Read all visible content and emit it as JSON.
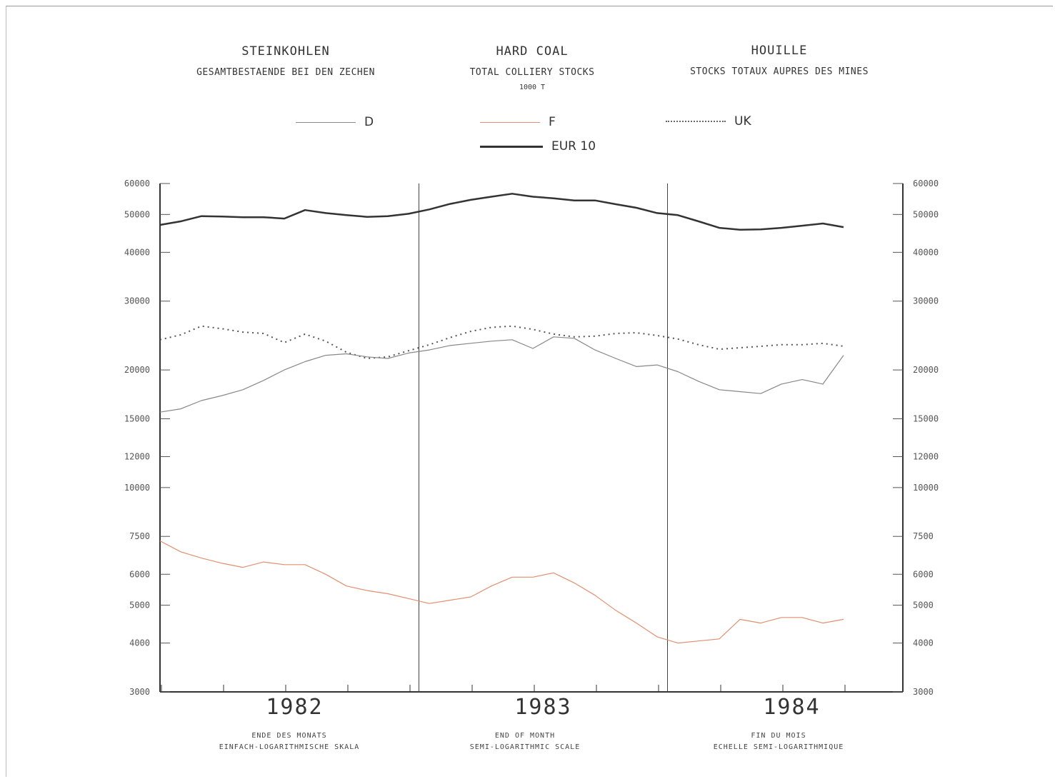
{
  "titles": {
    "de": {
      "main": "STEINKOHLEN",
      "sub": "GESAMTBESTAENDE BEI DEN ZECHEN"
    },
    "en": {
      "main": "HARD COAL",
      "sub": "TOTAL COLLIERY STOCKS",
      "unit": "1000 T"
    },
    "fr": {
      "main": "HOUILLE",
      "sub": "STOCKS TOTAUX AUPRES DES MINES"
    }
  },
  "legend": {
    "d": "D",
    "f": "F",
    "uk": "UK",
    "eur": "EUR 10"
  },
  "footer": {
    "de": {
      "line1": "ENDE DES MONATS",
      "line2": "EINFACH-LOGARITHMISCHE SKALA"
    },
    "en": {
      "line1": "END OF MONTH",
      "line2": "SEMI-LOGARITHMIC SCALE"
    },
    "fr": {
      "line1": "FIN DU MOIS",
      "line2": "ECHELLE SEMI-LOGARITHMIQUE"
    }
  },
  "colors": {
    "d": "#888888",
    "f": "#e09070",
    "f_dark": "#c05070",
    "uk": "#555555",
    "eur": "#333333",
    "axis": "#333333"
  },
  "chart_data": {
    "type": "line",
    "scale": "log",
    "ylim": [
      3000,
      60000
    ],
    "yticks": [
      3000,
      4000,
      5000,
      6000,
      7500,
      10000,
      12000,
      15000,
      20000,
      30000,
      40000,
      50000,
      60000
    ],
    "yticks_left_labels": [
      "3000",
      "4000",
      "5000",
      "6000",
      "7500",
      "10000",
      "12000",
      "15000",
      "20000",
      "30000",
      "40000",
      "50000",
      "60000"
    ],
    "yticks_right_labels": [
      "3000",
      "4000",
      "5000",
      "6000",
      "7500",
      "10000",
      "12000",
      "15000",
      "20000",
      "30000",
      "40000",
      "50000",
      "60000"
    ],
    "x_unit": "month",
    "x_start": "1981-12",
    "year_labels": [
      "1982",
      "1983",
      "1984"
    ],
    "series": [
      {
        "name": "EUR 10",
        "key": "eur",
        "values": [
          47000,
          48000,
          49500,
          49400,
          49200,
          49200,
          48800,
          51300,
          50400,
          49800,
          49300,
          49500,
          50200,
          51500,
          53200,
          54500,
          55500,
          56500,
          55500,
          55000,
          54300,
          54300,
          53100,
          52000,
          50400,
          49800,
          48000,
          46200,
          45700,
          45800,
          46200,
          46800,
          47400,
          46400
        ]
      },
      {
        "name": "UK",
        "key": "uk",
        "values": [
          23900,
          24600,
          25900,
          25500,
          25000,
          24800,
          23500,
          24700,
          23700,
          22200,
          21400,
          21600,
          22400,
          23200,
          24200,
          25100,
          25700,
          25900,
          25400,
          24700,
          24300,
          24400,
          24800,
          24900,
          24500,
          24000,
          23200,
          22600,
          22800,
          23000,
          23200,
          23200,
          23400,
          23000
        ]
      },
      {
        "name": "D",
        "key": "d",
        "values": [
          15600,
          15900,
          16700,
          17200,
          17800,
          18800,
          20000,
          21000,
          21800,
          22000,
          21600,
          21400,
          22100,
          22500,
          23100,
          23400,
          23700,
          23900,
          22700,
          24300,
          24100,
          22500,
          21400,
          20400,
          20600,
          19800,
          18700,
          17800,
          17600,
          17400,
          18400,
          18900,
          18400,
          21800
        ]
      },
      {
        "name": "F",
        "key": "f",
        "values": [
          7300,
          6850,
          6600,
          6400,
          6250,
          6450,
          6350,
          6350,
          6000,
          5600,
          5450,
          5350,
          5200,
          5050,
          5150,
          5250,
          5600,
          5900,
          5900,
          6050,
          5700,
          5300,
          4850,
          4500,
          4150,
          4000,
          4050,
          4100,
          4600,
          4500,
          4650,
          4650,
          4500,
          4600
        ]
      }
    ]
  }
}
